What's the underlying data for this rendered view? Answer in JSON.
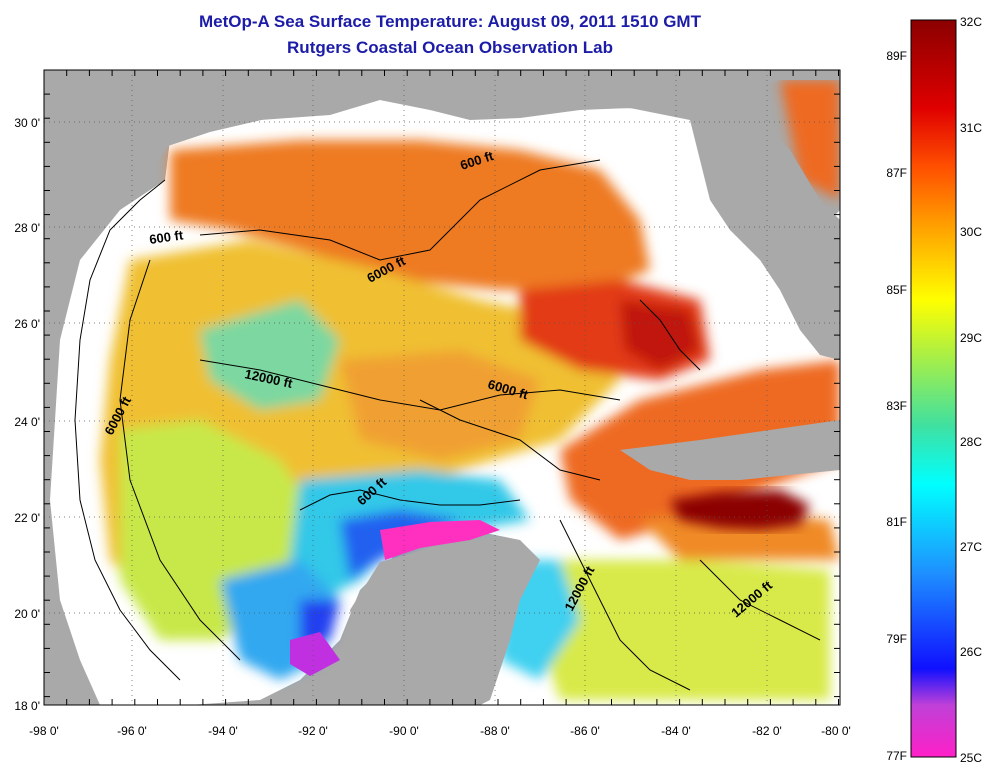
{
  "header": {
    "title": "MetOp-A Sea Surface Temperature:  August 09, 2011 1510 GMT",
    "subtitle": "Rutgers Coastal Ocean Observation Lab"
  },
  "map": {
    "lat_ticks": [
      "30 0'",
      "28 0'",
      "26 0'",
      "24 0'",
      "22 0'",
      "20 0'",
      "18 0'"
    ],
    "lon_ticks": [
      "-98 0'",
      "-96 0'",
      "-94 0'",
      "-92 0'",
      "-90 0'",
      "-88 0'",
      "-86 0'",
      "-84 0'",
      "-82 0'",
      "-80 0'"
    ],
    "contour_labels": [
      "600 ft",
      "600 ft",
      "6000 ft",
      "6000 ft",
      "12000 ft",
      "6000 ft",
      "600 ft",
      "12000 ft",
      "12000 ft"
    ],
    "colors": {
      "land": "#a9a9a9",
      "no_data": "#ffffff",
      "warm": "#e8501c",
      "hot": "#8b0000"
    }
  },
  "colorbar": {
    "celsius": [
      "32C",
      "31C",
      "30C",
      "29C",
      "28C",
      "27C",
      "26C",
      "25C"
    ],
    "fahrenheit": [
      "89F",
      "87F",
      "85F",
      "83F",
      "81F",
      "79F",
      "77F"
    ]
  }
}
